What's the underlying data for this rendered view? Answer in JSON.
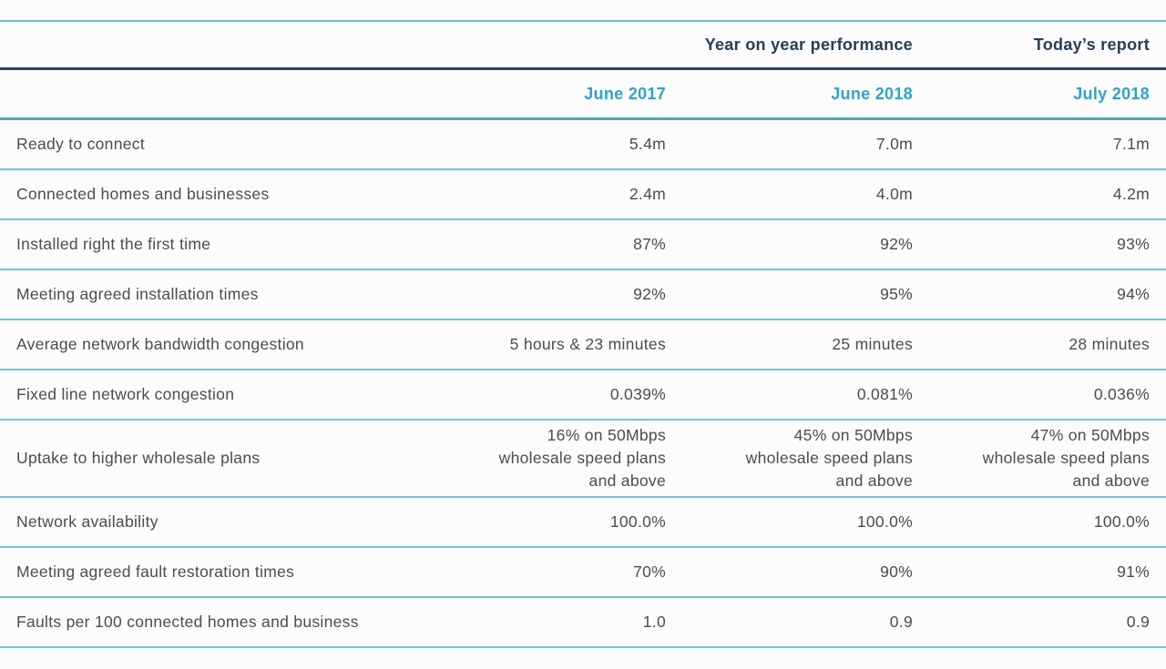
{
  "table": {
    "group_headers": [
      {
        "label": "Year on year performance"
      },
      {
        "label": "Today’s report"
      }
    ],
    "columns": [
      "June 2017",
      "June 2018",
      "July 2018"
    ],
    "rows": [
      {
        "label": "Ready to connect",
        "values": [
          "5.4m",
          "7.0m",
          "7.1m"
        ]
      },
      {
        "label": "Connected homes and businesses",
        "values": [
          "2.4m",
          "4.0m",
          "4.2m"
        ]
      },
      {
        "label": "Installed right the first time",
        "values": [
          "87%",
          "92%",
          "93%"
        ]
      },
      {
        "label": "Meeting agreed installation times",
        "values": [
          "92%",
          "95%",
          "94%"
        ]
      },
      {
        "label": "Average network bandwidth congestion",
        "values": [
          "5 hours & 23 minutes",
          "25 minutes",
          "28 minutes"
        ]
      },
      {
        "label": "Fixed line network congestion",
        "values": [
          "0.039%",
          "0.081%",
          "0.036%"
        ]
      },
      {
        "label": "Uptake to higher wholesale plans",
        "values": [
          "16% on 50Mbps\nwholesale speed plans\nand above",
          "45% on 50Mbps\nwholesale speed plans\nand above",
          "47% on 50Mbps\nwholesale speed plans\nand above"
        ]
      },
      {
        "label": "Network availability",
        "values": [
          "100.0%",
          "100.0%",
          "100.0%"
        ]
      },
      {
        "label": "Meeting agreed fault restoration times",
        "values": [
          "70%",
          "90%",
          "91%"
        ]
      },
      {
        "label": "Faults per 100 connected homes and business",
        "values": [
          "1.0",
          "0.9",
          "0.9"
        ]
      }
    ],
    "colors": {
      "accent_cyan": "#2ca5c9",
      "accent_navy": "#25405e",
      "rule_cyan_thick": "#3aabd2",
      "rule_cyan_thin": "#76c4d4",
      "rule_navy": "#2f4357",
      "body_text": "#4c4c4c",
      "background": "#fcfcfc"
    }
  }
}
